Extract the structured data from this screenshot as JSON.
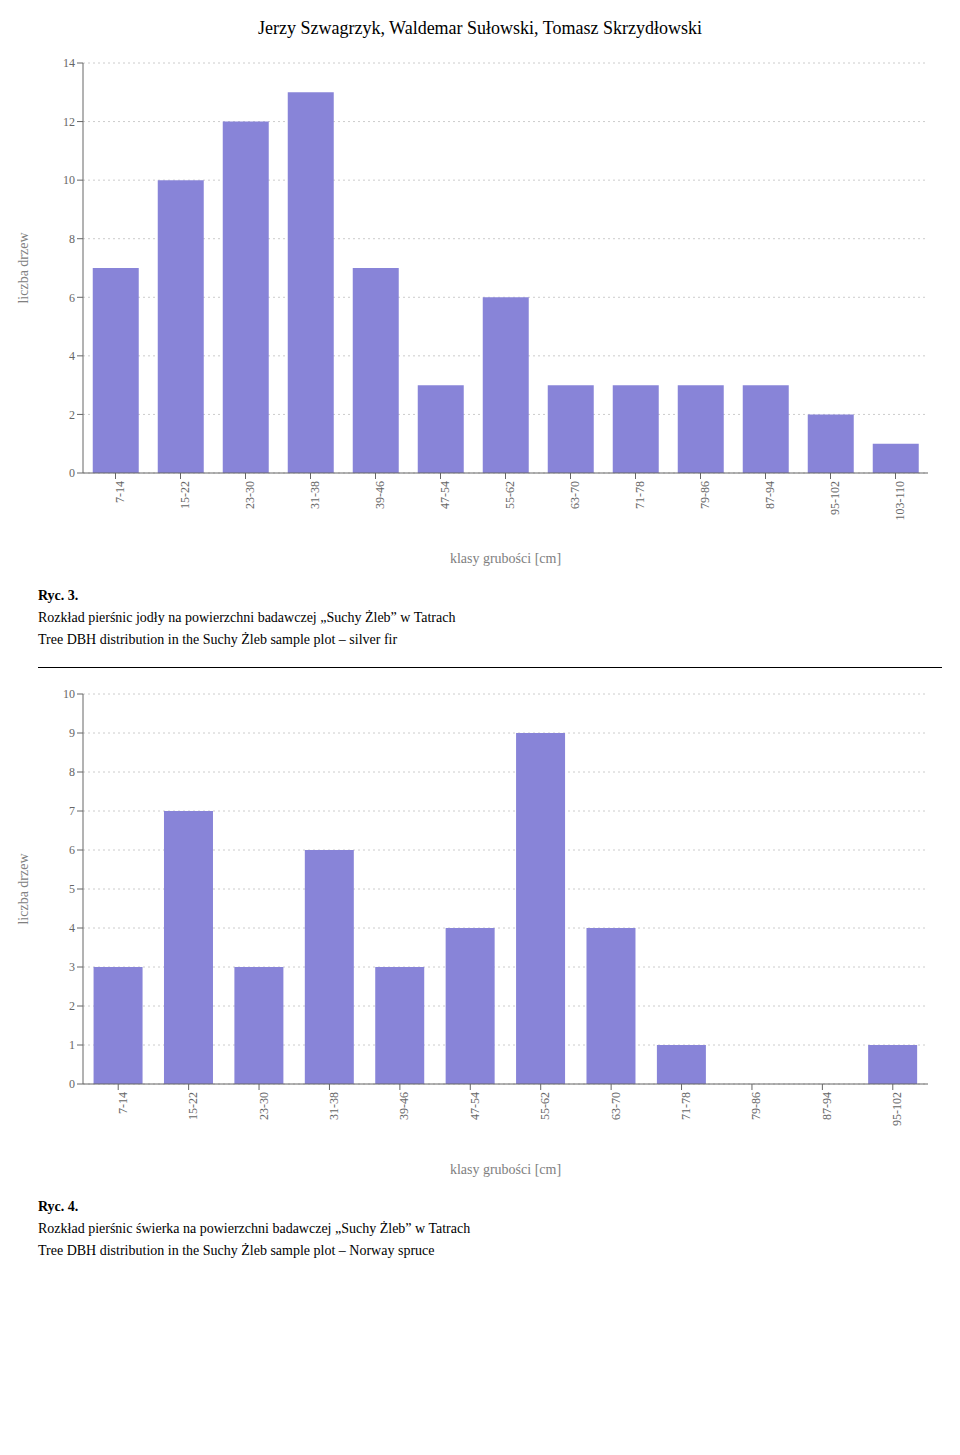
{
  "chart_data": [
    {
      "type": "bar",
      "title": "Jerzy Szwagrzyk, Waldemar Sułowski, Tomasz Skrzydłowski",
      "categories": [
        "7-14",
        "15-22",
        "23-30",
        "31-38",
        "39-46",
        "47-54",
        "55-62",
        "63-70",
        "71-78",
        "79-86",
        "87-94",
        "95-102",
        "103-110"
      ],
      "values": [
        7,
        10,
        12,
        13,
        7,
        3,
        6,
        3,
        3,
        3,
        3,
        2,
        1
      ],
      "color": "#8884d8",
      "ylabel": "liczba drzew",
      "xlabel": "klasy grubości [cm]",
      "ylim": [
        0,
        14
      ],
      "yticks": [
        0,
        2,
        4,
        6,
        8,
        10,
        12,
        14
      ],
      "grid": true,
      "annotations": [
        "Ryc. 3.",
        "Rozkład pierśnic jodły na powierzchni badawczej „Suchy Żleb” w Tatrach",
        "Tree DBH distribution in the Suchy Żleb sample plot – silver fir"
      ]
    },
    {
      "type": "bar",
      "categories": [
        "7-14",
        "15-22",
        "23-30",
        "31-38",
        "39-46",
        "47-54",
        "55-62",
        "63-70",
        "71-78",
        "79-86",
        "87-94",
        "95-102"
      ],
      "values": [
        3,
        7,
        3,
        6,
        3,
        4,
        9,
        4,
        1,
        0,
        0,
        1
      ],
      "color": "#8884d8",
      "ylabel": "liczba drzew",
      "xlabel": "klasy grubości [cm]",
      "ylim": [
        0,
        10
      ],
      "yticks": [
        0,
        1,
        2,
        3,
        4,
        5,
        6,
        7,
        8,
        9,
        10
      ],
      "grid": true,
      "annotations": [
        "Ryc. 4.",
        "Rozkład pierśnic świerka na powierzchni badawczej „Suchy Żleb” w Tatrach",
        "Tree DBH distribution in the Suchy Żleb sample plot – Norway spruce"
      ]
    }
  ]
}
